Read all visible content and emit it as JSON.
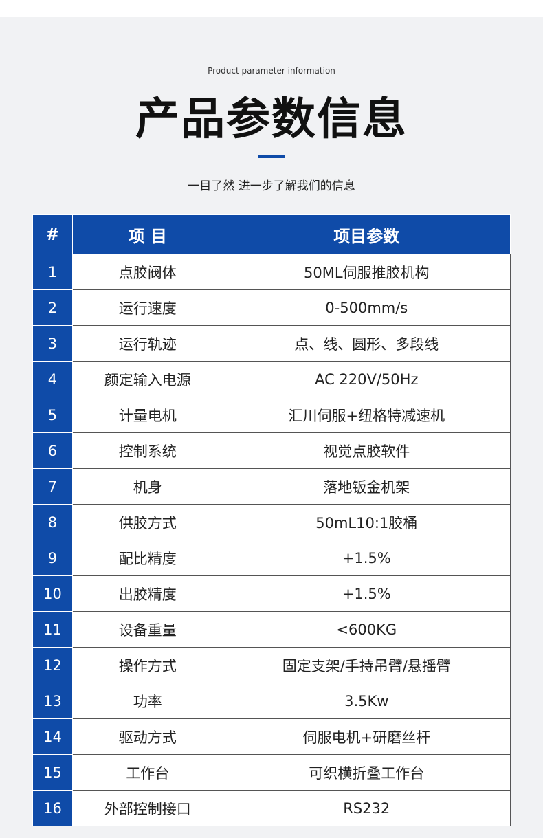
{
  "header": {
    "subtitle_en": "Product parameter information",
    "title": "产品参数信息",
    "tagline": "一目了然 进一步了解我们的信息"
  },
  "table": {
    "columns": [
      "#",
      "项 目",
      "项目参数"
    ],
    "rows": [
      [
        "1",
        "点胶阀体",
        "50ML伺服推胶机构"
      ],
      [
        "2",
        "运行速度",
        "0-500mm/s"
      ],
      [
        "3",
        "运行轨迹",
        "点、线、圆形、多段线"
      ],
      [
        "4",
        "颜定输入电源",
        "AC 220V/50Hz"
      ],
      [
        "5",
        "计量电机",
        "汇川伺服+纽格特减速机"
      ],
      [
        "6",
        "控制系统",
        "视觉点胶软件"
      ],
      [
        "7",
        "机身",
        "落地钣金机架"
      ],
      [
        "8",
        "供胶方式",
        "50mL10:1胶桶"
      ],
      [
        "9",
        "配比精度",
        "+1.5%"
      ],
      [
        "10",
        "出胶精度",
        "+1.5%"
      ],
      [
        "11",
        "设备重量",
        "<600KG"
      ],
      [
        "12",
        "操作方式",
        "固定支架/手持吊臂/悬摇臂"
      ],
      [
        "13",
        "功率",
        "3.5Kw"
      ],
      [
        "14",
        "驱动方式",
        "伺服电机+研磨丝杆"
      ],
      [
        "15",
        "工作台",
        "可织横折叠工作台"
      ],
      [
        "16",
        "外部控制接口",
        "RS232"
      ]
    ]
  }
}
